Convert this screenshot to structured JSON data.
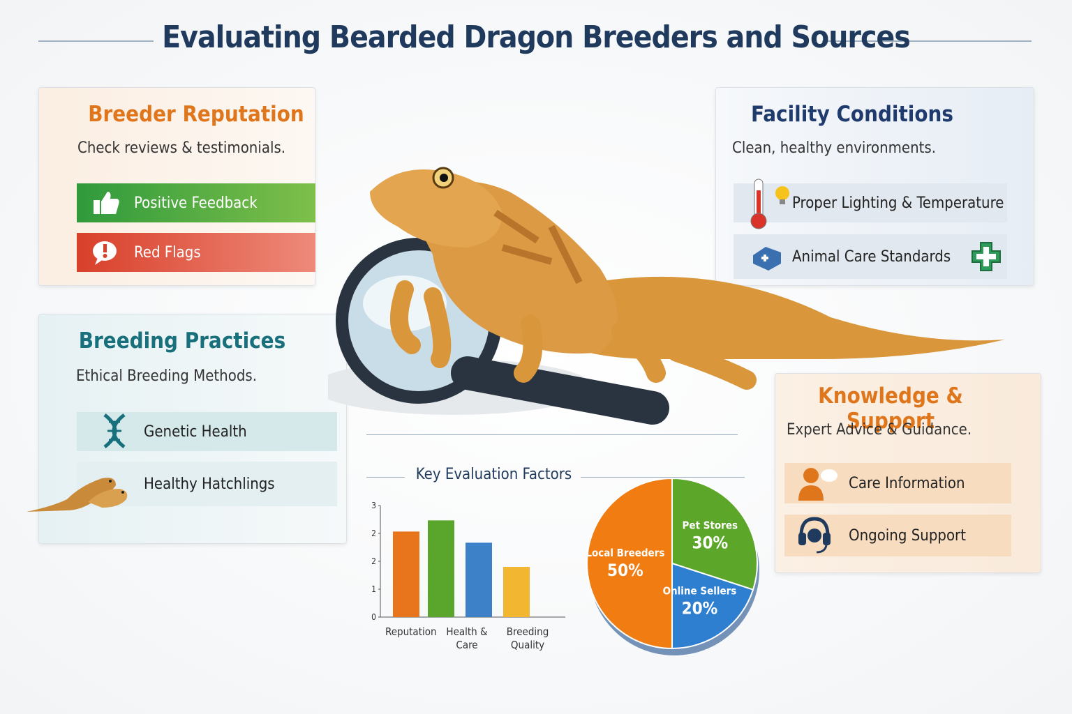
{
  "header": {
    "title": "Evaluating Bearded Dragon Breeders and Sources"
  },
  "panels": [
    {
      "title": "Breeder Reputation",
      "subtitle": "Check reviews & testimonials.",
      "items": [
        "Positive Feedback",
        "Red Flags"
      ]
    },
    {
      "title": "Facility Conditions",
      "subtitle": "Clean, healthy environments.",
      "items": [
        "Proper Lighting & Temperature",
        "Animal Care Standards"
      ]
    },
    {
      "title": "Breeding Practices",
      "subtitle": "Ethical Breeding Methods.",
      "items": [
        "Genetic Health",
        "Healthy Hatchlings"
      ]
    },
    {
      "title": "Knowledge & Support",
      "subtitle": "Expert Advice & Guidance.",
      "items": [
        "Care Information",
        "Ongoing Support"
      ]
    }
  ],
  "chart_data": [
    {
      "type": "bar",
      "title": "Key Evaluation Factors",
      "categories": [
        "Reputation",
        null,
        "Health & Care",
        "Breeding Quality"
      ],
      "values": [
        2.3,
        2.6,
        2.0,
        1.35
      ],
      "colors": [
        "#e8741c",
        "#5aa52c",
        "#3d82c8",
        "#f2b630"
      ],
      "ylim": [
        0,
        3
      ],
      "yticks": [
        0,
        {
          "value": 0.75,
          "label": "1"
        },
        {
          "value": 1.5,
          "label": "2"
        },
        {
          "value": 2.25,
          "label": "2"
        },
        3
      ]
    },
    {
      "type": "pie",
      "categories": [
        "Local Breeders",
        "Pet Stores",
        "Online Sellers"
      ],
      "values": [
        50,
        30,
        20
      ],
      "value_labels": [
        "50%",
        "30%",
        "20%"
      ],
      "colors": [
        "#f07c12",
        "#5ca72a",
        "#2f7fd0"
      ]
    }
  ]
}
